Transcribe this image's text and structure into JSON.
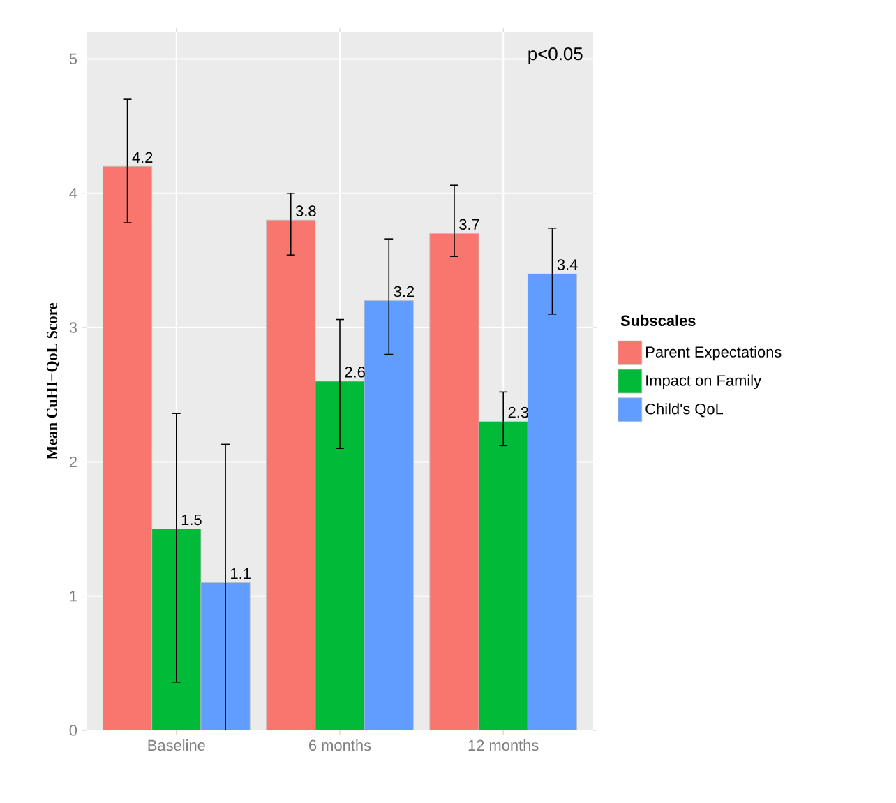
{
  "chart_data": {
    "type": "bar",
    "ylabel": "Mean CuHI−QoL Score",
    "legend_title": "Subscales",
    "categories": [
      "Baseline",
      "6 months",
      "12 months"
    ],
    "series": [
      {
        "name": "Parent Expectations",
        "color": "#f8766d",
        "values": [
          4.2,
          3.8,
          3.7
        ],
        "errors": [
          [
            3.78,
            4.7
          ],
          [
            3.54,
            4.0
          ],
          [
            3.53,
            4.06
          ]
        ]
      },
      {
        "name": "Impact on Family",
        "color": "#00ba38",
        "values": [
          1.5,
          2.6,
          2.3
        ],
        "errors": [
          [
            0.36,
            2.36
          ],
          [
            2.1,
            3.06
          ],
          [
            2.12,
            2.52
          ]
        ]
      },
      {
        "name": "Child's QoL",
        "color": "#619cff",
        "values": [
          1.1,
          3.2,
          3.4
        ],
        "errors": [
          [
            0,
            2.13
          ],
          [
            2.8,
            3.66
          ],
          [
            3.1,
            3.74
          ]
        ]
      }
    ],
    "annotations": [
      "p<0.05"
    ],
    "ylim": [
      0,
      5.2
    ],
    "yticks": [
      0,
      1,
      2,
      3,
      4,
      5
    ],
    "grid": true,
    "legend": "right",
    "data_labels": true
  }
}
